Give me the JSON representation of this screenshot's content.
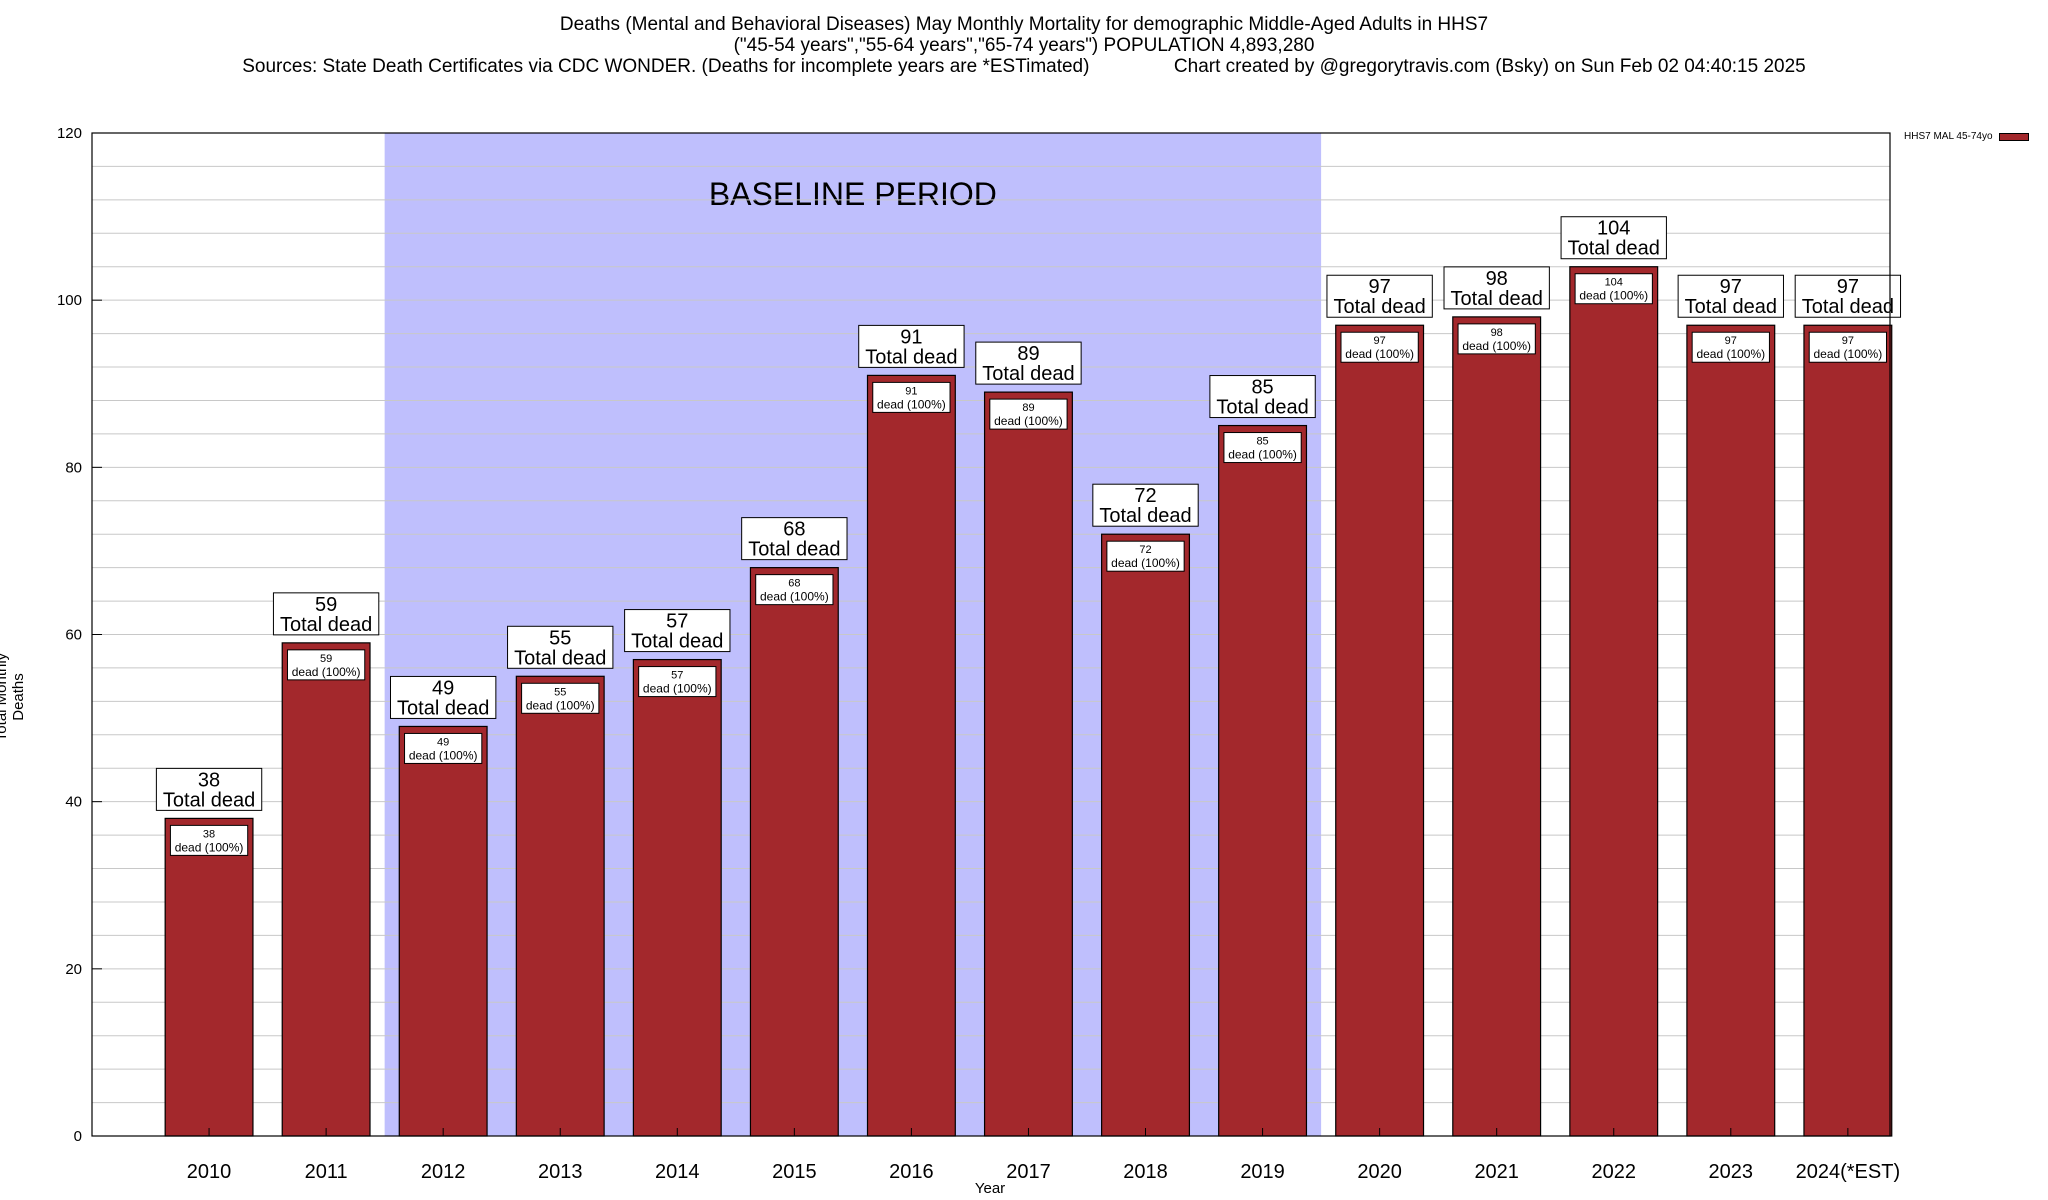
{
  "header": {
    "title_line1": "Deaths (Mental and Behavioral Diseases) May Monthly Mortality for demographic Middle-Aged Adults in HHS7",
    "title_line2": "(\"45-54 years\",\"55-64 years\",\"65-74 years\") POPULATION 4,893,280",
    "title_line3": "Sources: State Death Certificates via CDC WONDER. (Deaths for incomplete years are *ESTimated)                Chart created by @gregorytravis.com (Bsky) on Sun Feb 02 04:40:15 2025"
  },
  "colors": {
    "bar": "#a3282c",
    "baseline_band": "#bfbffd",
    "grid": "#c8c8c8"
  },
  "chart_data": {
    "type": "bar",
    "categories": [
      "2010",
      "2011",
      "2012",
      "2013",
      "2014",
      "2015",
      "2016",
      "2017",
      "2018",
      "2019",
      "2020",
      "2021",
      "2022",
      "2023",
      "2024(*EST)"
    ],
    "series": [
      {
        "name": "HHS7 MAL 45-74yo",
        "values": [
          38,
          59,
          49,
          55,
          57,
          68,
          91,
          89,
          72,
          85,
          97,
          98,
          104,
          97,
          97
        ]
      }
    ],
    "ylabel": "Total Monthly Deaths",
    "xlabel": "Year",
    "ylim": [
      0,
      120
    ],
    "yticks": [
      0,
      20,
      40,
      60,
      80,
      100,
      120
    ],
    "grid": true,
    "legend": "top-right",
    "bar_label_caption": "Total dead",
    "inner_label_caption": "dead (100%)",
    "baseline_period": {
      "label": "BASELINE PERIOD",
      "from_category": "2012",
      "to_category": "2019"
    }
  }
}
